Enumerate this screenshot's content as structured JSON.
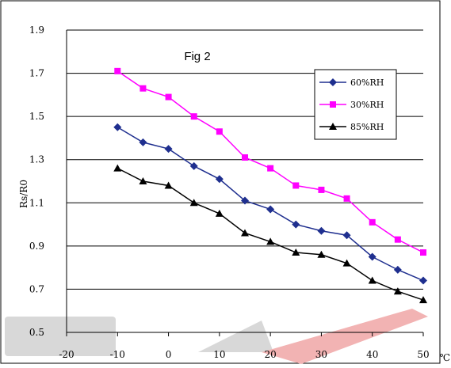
{
  "chart_data": {
    "type": "line",
    "title": "Fig 2",
    "ylabel": "Rs/R0",
    "xlabel": "",
    "x_unit": "℃",
    "xlim": [
      -20,
      50
    ],
    "ylim": [
      0.5,
      1.9
    ],
    "x_ticks": [
      -20,
      -10,
      0,
      10,
      20,
      30,
      40,
      50
    ],
    "y_ticks": [
      "0.5",
      "0.7",
      "0.9",
      "1.1",
      "1.3",
      "1.5",
      "1.7",
      "1.9"
    ],
    "grid": "horizontal",
    "legend_position": "top-right",
    "x": [
      -10,
      -5,
      0,
      5,
      10,
      15,
      20,
      25,
      30,
      35,
      40,
      45,
      50
    ],
    "series": [
      {
        "name": "60%RH",
        "color": "#1f2f8f",
        "marker": "diamond",
        "values": [
          1.45,
          1.38,
          1.35,
          1.27,
          1.21,
          1.11,
          1.07,
          1.0,
          0.97,
          0.95,
          0.85,
          0.79,
          0.74
        ]
      },
      {
        "name": "30%RH",
        "color": "#ff00ff",
        "marker": "square",
        "values": [
          1.71,
          1.63,
          1.59,
          1.5,
          1.43,
          1.31,
          1.26,
          1.18,
          1.16,
          1.12,
          1.01,
          0.93,
          0.87
        ]
      },
      {
        "name": "85%RH",
        "color": "#000000",
        "marker": "triangle",
        "values": [
          1.26,
          1.2,
          1.18,
          1.1,
          1.05,
          0.96,
          0.92,
          0.87,
          0.86,
          0.82,
          0.74,
          0.69,
          0.65
        ]
      }
    ]
  }
}
